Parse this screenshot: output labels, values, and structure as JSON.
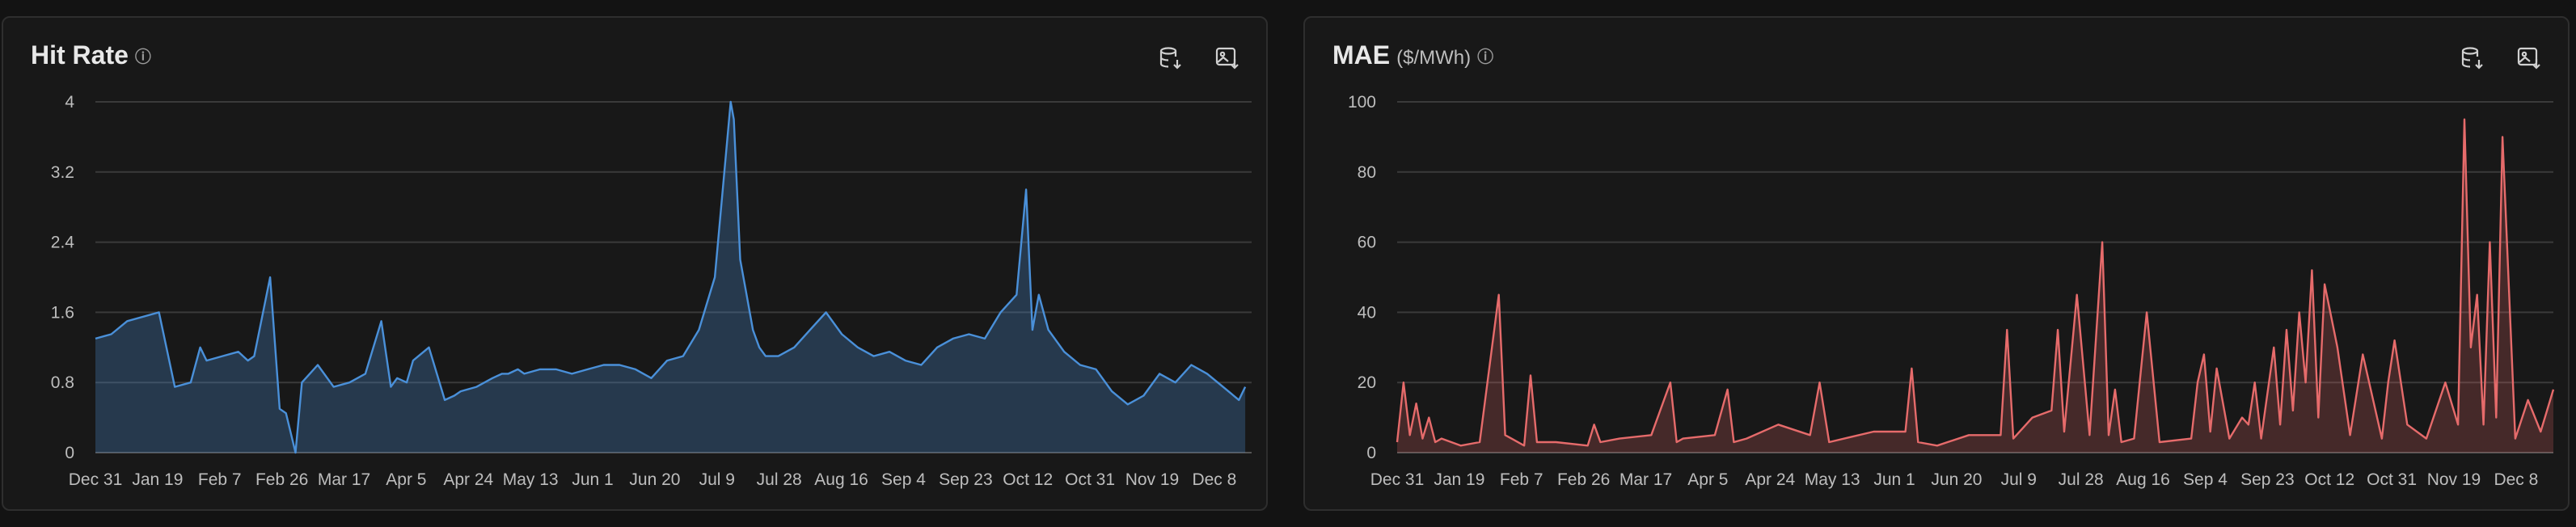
{
  "panels": [
    {
      "title": "Hit Rate",
      "unit": "",
      "icons": [
        "info-icon",
        "download-data-icon",
        "download-image-icon"
      ]
    },
    {
      "title": "MAE",
      "unit": "($/MWh)",
      "icons": [
        "info-icon",
        "download-data-icon",
        "download-image-icon"
      ]
    }
  ],
  "colors": {
    "hit_rate": "#4a90d9",
    "mae": "#e66b6b"
  },
  "chart_data": [
    {
      "type": "area",
      "title": "Hit Rate",
      "xlabel": "",
      "ylabel": "",
      "ylim": [
        0,
        4
      ],
      "yticks": [
        0,
        0.8,
        1.6,
        2.4,
        3.2,
        4
      ],
      "ytick_labels": [
        "0",
        "0.8",
        "1.6",
        "2.4",
        "3.2",
        "4"
      ],
      "xtick_labels": [
        "Dec 31",
        "Jan 19",
        "Feb 7",
        "Feb 26",
        "Mar 17",
        "Apr 5",
        "Apr 24",
        "May 13",
        "Jun 1",
        "Jun 20",
        "Jul 9",
        "Jul 28",
        "Aug 16",
        "Sep 4",
        "Sep 23",
        "Oct 12",
        "Oct 31",
        "Nov 19",
        "Dec 8"
      ],
      "grid": true,
      "series": [
        {
          "x": [
            0,
            5,
            10,
            20,
            25,
            30,
            33,
            35,
            40,
            45,
            48,
            50,
            55,
            58,
            60,
            63,
            65,
            70,
            75,
            80,
            85,
            90,
            93,
            95,
            98,
            100,
            105,
            110,
            113,
            115,
            120,
            125,
            128,
            130,
            133,
            135,
            140,
            145,
            150,
            155,
            160,
            165,
            170,
            175,
            180,
            185,
            190,
            195,
            200,
            201,
            203,
            205,
            207,
            209,
            211,
            215,
            220,
            225,
            230,
            235,
            240,
            245,
            250,
            255,
            260,
            265,
            270,
            275,
            280,
            285,
            290,
            293,
            295,
            297,
            300,
            305,
            310,
            315,
            320,
            325,
            330,
            335,
            340,
            345,
            350,
            355,
            360,
            362
          ],
          "values": [
            1.3,
            1.35,
            1.5,
            1.6,
            0.75,
            0.8,
            1.2,
            1.05,
            1.1,
            1.15,
            1.05,
            1.1,
            2.0,
            0.5,
            0.45,
            0.0,
            0.8,
            1.0,
            0.75,
            0.8,
            0.9,
            1.5,
            0.75,
            0.85,
            0.8,
            1.05,
            1.2,
            0.6,
            0.65,
            0.7,
            0.75,
            0.85,
            0.9,
            0.9,
            0.95,
            0.9,
            0.95,
            0.95,
            0.9,
            0.95,
            1.0,
            1.0,
            0.95,
            0.85,
            1.05,
            1.1,
            1.4,
            2.0,
            4.0,
            3.8,
            2.2,
            1.8,
            1.4,
            1.2,
            1.1,
            1.1,
            1.2,
            1.4,
            1.6,
            1.35,
            1.2,
            1.1,
            1.15,
            1.05,
            1.0,
            1.2,
            1.3,
            1.35,
            1.3,
            1.6,
            1.8,
            3.0,
            1.4,
            1.8,
            1.4,
            1.15,
            1.0,
            0.95,
            0.7,
            0.55,
            0.65,
            0.9,
            0.8,
            1.0,
            0.9,
            0.75,
            0.6,
            0.75
          ]
        }
      ]
    },
    {
      "type": "area",
      "title": "MAE",
      "xlabel": "",
      "ylabel": "($/MWh)",
      "ylim": [
        0,
        100
      ],
      "yticks": [
        0,
        20,
        40,
        60,
        80,
        100
      ],
      "ytick_labels": [
        "0",
        "20",
        "40",
        "60",
        "80",
        "100"
      ],
      "xtick_labels": [
        "Dec 31",
        "Jan 19",
        "Feb 7",
        "Feb 26",
        "Mar 17",
        "Apr 5",
        "Apr 24",
        "May 13",
        "Jun 1",
        "Jun 20",
        "Jul 9",
        "Jul 28",
        "Aug 16",
        "Sep 4",
        "Sep 23",
        "Oct 12",
        "Oct 31",
        "Nov 19",
        "Dec 8"
      ],
      "grid": true,
      "series": [
        {
          "x": [
            0,
            2,
            4,
            6,
            8,
            10,
            12,
            14,
            20,
            26,
            32,
            34,
            36,
            40,
            42,
            44,
            50,
            60,
            62,
            64,
            70,
            80,
            86,
            88,
            90,
            100,
            104,
            106,
            110,
            120,
            130,
            133,
            136,
            150,
            160,
            162,
            164,
            170,
            180,
            190,
            192,
            194,
            200,
            206,
            208,
            210,
            214,
            218,
            222,
            224,
            226,
            228,
            232,
            236,
            240,
            250,
            252,
            254,
            256,
            258,
            262,
            266,
            268,
            270,
            272,
            276,
            278,
            280,
            282,
            284,
            286,
            288,
            290,
            292,
            296,
            300,
            304,
            310,
            312,
            314,
            318,
            324,
            330,
            334,
            336,
            338,
            340,
            342,
            344,
            346,
            348,
            352,
            356,
            360,
            364
          ],
          "values": [
            3,
            20,
            5,
            14,
            4,
            10,
            3,
            4,
            2,
            3,
            45,
            5,
            4,
            2,
            22,
            3,
            3,
            2,
            8,
            3,
            4,
            5,
            20,
            3,
            4,
            5,
            18,
            3,
            4,
            8,
            5,
            20,
            3,
            6,
            6,
            24,
            3,
            2,
            5,
            5,
            35,
            4,
            10,
            12,
            35,
            6,
            45,
            5,
            60,
            5,
            18,
            3,
            4,
            40,
            3,
            4,
            20,
            28,
            6,
            24,
            4,
            10,
            8,
            20,
            4,
            30,
            8,
            35,
            12,
            40,
            20,
            52,
            10,
            48,
            30,
            5,
            28,
            4,
            20,
            32,
            8,
            4,
            20,
            8,
            95,
            30,
            45,
            8,
            60,
            10,
            90,
            4,
            15,
            6,
            18
          ]
        }
      ]
    }
  ]
}
